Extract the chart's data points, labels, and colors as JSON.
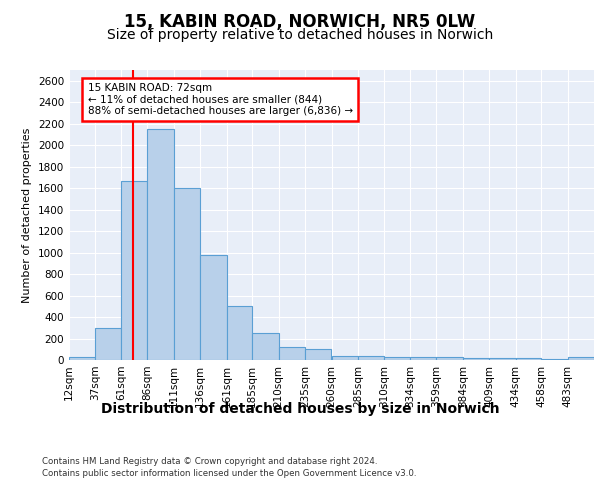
{
  "title_line1": "15, KABIN ROAD, NORWICH, NR5 0LW",
  "title_line2": "Size of property relative to detached houses in Norwich",
  "xlabel": "Distribution of detached houses by size in Norwich",
  "ylabel": "Number of detached properties",
  "bar_color": "#b8d0ea",
  "bar_edge_color": "#5a9fd4",
  "background_color": "#e8eef8",
  "annotation_line1": "15 KABIN ROAD: 72sqm",
  "annotation_line2": "← 11% of detached houses are smaller (844)",
  "annotation_line3": "88% of semi-detached houses are larger (6,836) →",
  "annotation_box_color": "white",
  "annotation_box_edge": "red",
  "vline_x": 72,
  "vline_color": "red",
  "footer_line1": "Contains HM Land Registry data © Crown copyright and database right 2024.",
  "footer_line2": "Contains public sector information licensed under the Open Government Licence v3.0.",
  "bin_edges": [
    12,
    37,
    61,
    86,
    111,
    136,
    161,
    185,
    210,
    235,
    260,
    285,
    310,
    334,
    359,
    384,
    409,
    434,
    458,
    483,
    508
  ],
  "bin_heights": [
    25,
    300,
    1670,
    2150,
    1600,
    975,
    500,
    250,
    120,
    100,
    40,
    40,
    25,
    25,
    25,
    20,
    20,
    20,
    5,
    25
  ],
  "ylim": [
    0,
    2700
  ],
  "yticks": [
    0,
    200,
    400,
    600,
    800,
    1000,
    1200,
    1400,
    1600,
    1800,
    2000,
    2200,
    2400,
    2600
  ],
  "grid_color": "white",
  "title_fontsize": 12,
  "subtitle_fontsize": 10,
  "xlabel_fontsize": 10,
  "ylabel_fontsize": 8,
  "tick_fontsize": 7.5
}
